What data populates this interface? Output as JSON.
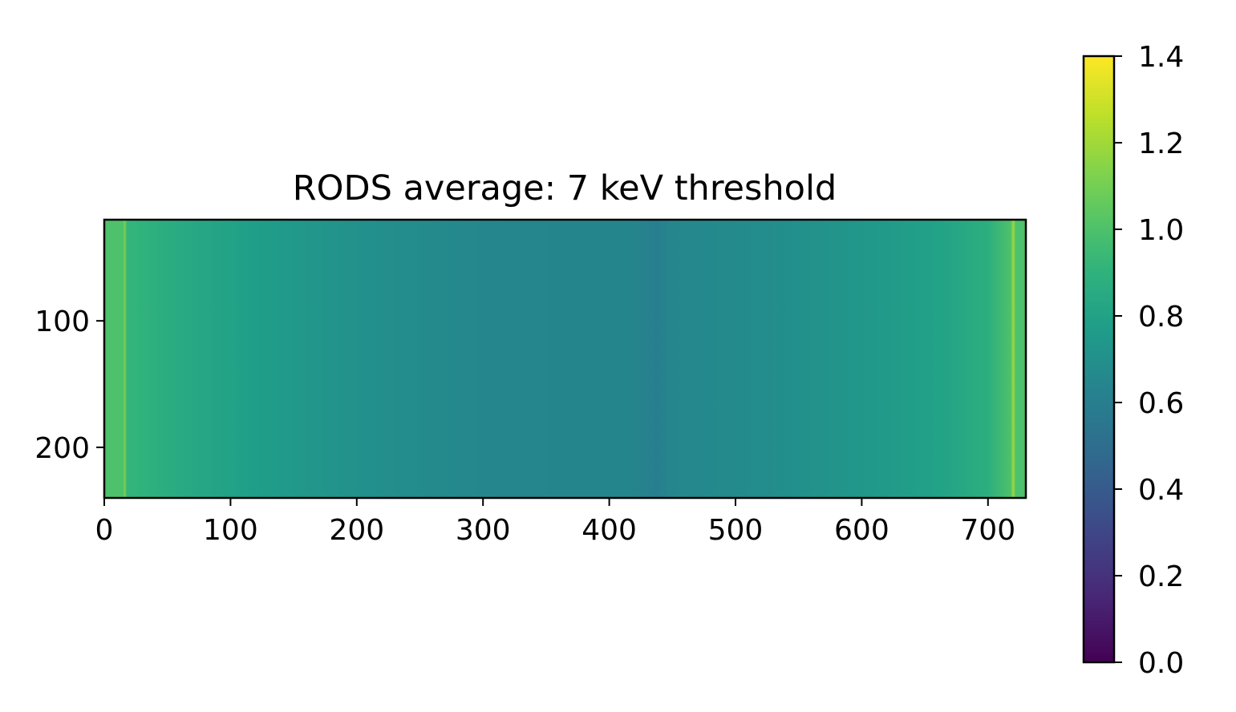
{
  "chart_data": {
    "type": "heatmap",
    "title": "RODS average: 7 keV threshold",
    "colormap": "viridis",
    "xlim": [
      0,
      730
    ],
    "ylim": [
      20,
      240
    ],
    "y_inverted": true,
    "x_ticks": [
      0,
      100,
      200,
      300,
      400,
      500,
      600,
      700
    ],
    "x_tick_labels": [
      "0",
      "100",
      "200",
      "300",
      "400",
      "500",
      "600",
      "700"
    ],
    "y_ticks": [
      100,
      200
    ],
    "y_tick_labels": [
      "100",
      "200"
    ],
    "column_profile": [
      {
        "x": 0,
        "value": 1.0
      },
      {
        "x": 15,
        "value": 1.0
      },
      {
        "x": 16,
        "value": 1.12
      },
      {
        "x": 18,
        "value": 0.92
      },
      {
        "x": 60,
        "value": 0.85
      },
      {
        "x": 120,
        "value": 0.78
      },
      {
        "x": 180,
        "value": 0.72
      },
      {
        "x": 240,
        "value": 0.68
      },
      {
        "x": 300,
        "value": 0.65
      },
      {
        "x": 360,
        "value": 0.64
      },
      {
        "x": 420,
        "value": 0.64
      },
      {
        "x": 437,
        "value": 0.6
      },
      {
        "x": 450,
        "value": 0.65
      },
      {
        "x": 520,
        "value": 0.68
      },
      {
        "x": 600,
        "value": 0.74
      },
      {
        "x": 660,
        "value": 0.8
      },
      {
        "x": 700,
        "value": 0.88
      },
      {
        "x": 718,
        "value": 1.0
      },
      {
        "x": 720,
        "value": 1.2
      },
      {
        "x": 722,
        "value": 1.0
      },
      {
        "x": 730,
        "value": 1.0
      }
    ],
    "colorbar": {
      "range": [
        0.0,
        1.4
      ],
      "ticks": [
        0.0,
        0.2,
        0.4,
        0.6,
        0.8,
        1.0,
        1.2,
        1.4
      ],
      "tick_labels": [
        "0.0",
        "0.2",
        "0.4",
        "0.6",
        "0.8",
        "1.0",
        "1.2",
        "1.4"
      ]
    }
  }
}
